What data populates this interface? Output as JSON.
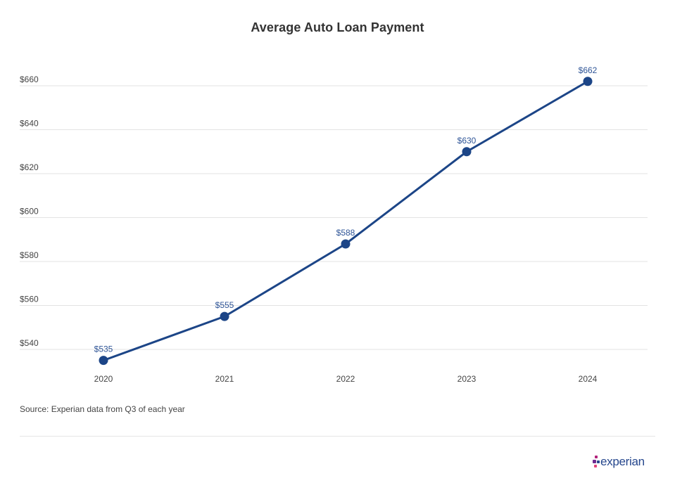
{
  "chart_data": {
    "type": "line",
    "title": "Average Auto Loan Payment",
    "xlabel": "",
    "ylabel": "",
    "categories": [
      "2020",
      "2021",
      "2022",
      "2023",
      "2024"
    ],
    "series": [
      {
        "values": [
          535,
          555,
          588,
          630,
          662
        ],
        "data_labels": [
          "$535",
          "$555",
          "$588",
          "$630",
          "$662"
        ],
        "color": "#1c4587"
      }
    ],
    "ylim": [
      532,
      664
    ],
    "yticks": [
      540,
      560,
      580,
      600,
      620,
      640,
      660
    ],
    "ytick_labels": [
      "$540",
      "$560",
      "$580",
      "$600",
      "$620",
      "$640",
      "$660"
    ],
    "grid": true,
    "legend": "none"
  },
  "source_note": "Source: Experian data from Q3 of each year",
  "brand": {
    "name": "experian",
    "text_color": "#26478d",
    "dot_colors": [
      "#b2217a",
      "#6f2c91",
      "#26478d",
      "#e0457b"
    ]
  }
}
